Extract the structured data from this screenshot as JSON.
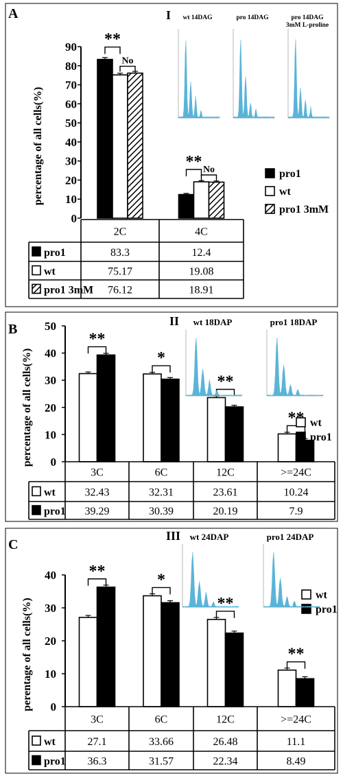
{
  "chart_data": [
    {
      "type": "bar",
      "panel": "A",
      "ylabel": "percentage of all cells(%)",
      "ylim": [
        0,
        90
      ],
      "yticks": [
        0,
        10,
        20,
        30,
        40,
        50,
        60,
        70,
        80,
        90
      ],
      "categories": [
        "2C",
        "4C"
      ],
      "series": [
        {
          "name": "pro1",
          "values": [
            83.3,
            12.4
          ],
          "pattern": "solid",
          "color": "#000000"
        },
        {
          "name": "wt",
          "values": [
            75.17,
            19.08
          ],
          "pattern": "hollow",
          "color": "#ffffff"
        },
        {
          "name": "pro1 3mM",
          "values": [
            76.12,
            18.91
          ],
          "pattern": "hatch",
          "color": "#ffffff"
        }
      ],
      "legend": [
        "pro1",
        "wt",
        "pro1   3mM"
      ],
      "table_row_labels": [
        "pro1",
        "wt",
        "pro1 3mM"
      ],
      "table_values": [
        [
          "83.3",
          "12.4"
        ],
        [
          "75.17",
          "19.08"
        ],
        [
          "76.12",
          "18.91"
        ]
      ],
      "annotations": [
        {
          "category": "2C",
          "significance": "**"
        },
        {
          "category": "2C",
          "significance": "No"
        },
        {
          "category": "4C",
          "significance": "**"
        },
        {
          "category": "4C",
          "significance": "No"
        }
      ],
      "inset": {
        "roman": "I",
        "labels": [
          "wt 14DAG",
          "pro 14DAG",
          "pro 14DAG\n3mM L-proline"
        ],
        "color": "#5ab4d8"
      }
    },
    {
      "type": "bar",
      "panel": "B",
      "ylabel": "percentage of all cells(%)",
      "ylim": [
        0,
        50
      ],
      "yticks": [
        0,
        10,
        20,
        30,
        40,
        50
      ],
      "categories": [
        "3C",
        "6C",
        "12C",
        ">=24C"
      ],
      "series": [
        {
          "name": "wt",
          "values": [
            32.43,
            32.31,
            23.61,
            10.24
          ],
          "pattern": "hollow",
          "color": "#ffffff"
        },
        {
          "name": "pro1",
          "values": [
            39.29,
            30.39,
            20.19,
            7.9
          ],
          "pattern": "solid",
          "color": "#000000"
        }
      ],
      "legend": [
        "wt",
        "pro1"
      ],
      "table_row_labels": [
        "wt",
        "pro1"
      ],
      "table_values": [
        [
          "32.43",
          "32.31",
          "23.61",
          "10.24"
        ],
        [
          "39.29",
          "30.39",
          "20.19",
          "7.9"
        ]
      ],
      "significance": [
        "**",
        "*",
        "**",
        "**"
      ],
      "inset": {
        "roman": "II",
        "labels": [
          "wt 18DAP",
          "pro1 18DAP"
        ],
        "color": "#5ab4d8"
      }
    },
    {
      "type": "bar",
      "panel": "C",
      "ylabel": "perentage of all cells(%)",
      "ylim": [
        0,
        40
      ],
      "yticks": [
        0,
        10,
        20,
        30,
        40
      ],
      "categories": [
        "3C",
        "6C",
        "12C",
        ">=24C"
      ],
      "series": [
        {
          "name": "wt",
          "values": [
            27.1,
            33.66,
            26.48,
            11.1
          ],
          "pattern": "hollow",
          "color": "#ffffff"
        },
        {
          "name": "pro1",
          "values": [
            36.3,
            31.57,
            22.34,
            8.49
          ],
          "pattern": "solid",
          "color": "#000000"
        }
      ],
      "legend": [
        "wt",
        "pro1"
      ],
      "table_row_labels": [
        "wt",
        "pro1"
      ],
      "table_values": [
        [
          "27.1",
          "33.66",
          "26.48",
          "11.1"
        ],
        [
          "36.3",
          "31.57",
          "22.34",
          "8.49"
        ]
      ],
      "significance": [
        "**",
        "*",
        "**",
        "**"
      ],
      "inset": {
        "roman": "III",
        "labels": [
          "wt 24DAP",
          "pro1 24DAP"
        ],
        "color": "#5ab4d8"
      }
    }
  ]
}
